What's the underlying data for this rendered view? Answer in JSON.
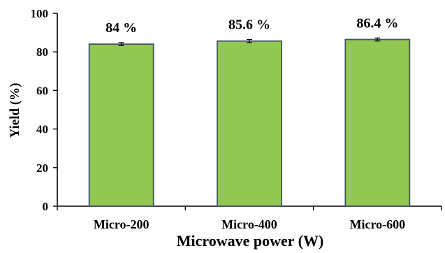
{
  "chart_data": {
    "type": "bar",
    "categories": [
      "Micro-200",
      "Micro-400",
      "Micro-600"
    ],
    "values": [
      84,
      85.6,
      86.4
    ],
    "error": [
      0.8,
      0.8,
      0.8
    ],
    "data_labels": [
      "84 %",
      "85.6 %",
      "86.4 %"
    ],
    "xlabel": "Microwave power (W)",
    "ylabel": "Yield (%)",
    "ylim": [
      0,
      100
    ],
    "yticks": [
      "0",
      "20",
      "40",
      "60",
      "80",
      "100"
    ],
    "grid": false,
    "bar_fill": "#92c852",
    "bar_stroke": "#3f5368"
  }
}
